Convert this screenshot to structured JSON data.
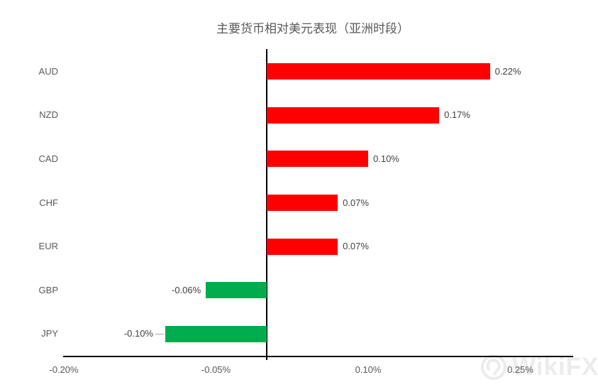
{
  "title": "主要货币相对美元表现（亚洲时段）",
  "watermark": {
    "text": "WikiFX"
  },
  "colors": {
    "positive_bar": "#ff0000",
    "negative_bar": "#00ac4e",
    "axis_line": "#000000",
    "category_label": "#595959",
    "data_label": "#404040",
    "watermark": "#ececec"
  },
  "chart_data": {
    "type": "bar",
    "orientation": "horizontal",
    "title": "主要货币相对美元表现（亚洲时段）",
    "xlabel": "",
    "ylabel": "",
    "categories": [
      "AUD",
      "NZD",
      "CAD",
      "CHF",
      "EUR",
      "GBP",
      "JPY"
    ],
    "values": [
      0.22,
      0.17,
      0.1,
      0.07,
      0.07,
      -0.06,
      -0.1
    ],
    "data_labels": [
      "0.22%",
      "0.17%",
      "0.10%",
      "0.07%",
      "0.07%",
      "-0.06%",
      "-0.10%"
    ],
    "leader_lines": [
      false,
      false,
      false,
      false,
      false,
      false,
      true
    ],
    "xlim": [
      -0.2,
      0.3
    ],
    "x_tick_values": [
      -0.2,
      -0.05,
      0.1,
      0.25
    ],
    "x_tick_labels": [
      "-0.20%",
      "-0.05%",
      "0.10%",
      "0.25%"
    ],
    "grid": false,
    "legend": false,
    "color_rule": "positive bars red, negative bars green"
  }
}
